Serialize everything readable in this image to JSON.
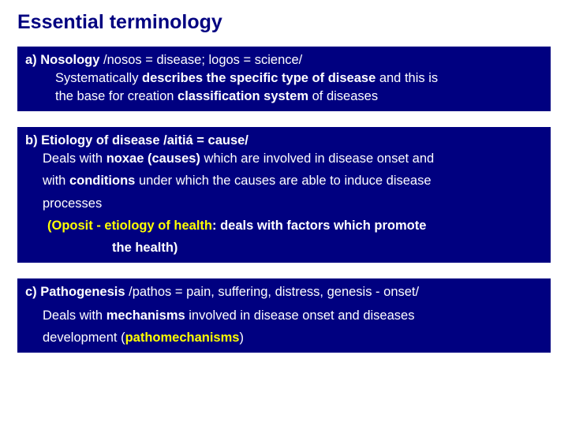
{
  "style": {
    "bg_color": "#ffffff",
    "box_bg": "#000080",
    "box_text": "#ffffff",
    "title_color": "#000080",
    "accent_color": "#ffff00",
    "title_fontsize": 25,
    "body_fontsize": 16.5,
    "font_family": "Verdana, Arial, sans-serif"
  },
  "title": "Essential terminology",
  "boxA": {
    "label": "a) Nosology",
    "ety": "/nosos = disease; logos = science/",
    "t1": "Systematically ",
    "b1": "describes the specific type of disease",
    "t2": " and this is",
    "t3": "the base for creation ",
    "b2": "classification system",
    "t4": " of diseases"
  },
  "boxB": {
    "label": "b) Etiology of disease /aitiá = cause/",
    "t1": "Deals with ",
    "b1": "noxae (causes)",
    "t2": " which are involved in disease onset and",
    "t3": "with ",
    "b2": "conditions",
    "t4": " under which the causes are able to induce disease",
    "t5": "processes",
    "y1": "(Oposit - etiology of health",
    "y2": ": deals with factors which promote",
    "y3": "the health)"
  },
  "boxC": {
    "label": "c) Pathogenesis",
    "ety": "/pathos = pain, suffering, distress, genesis - onset/",
    "t1": "Deals with ",
    "b1": "mechanisms",
    "t2": " involved in disease onset and diseases",
    "t3": "development (",
    "y1": "pathomechanisms",
    "t4": ")"
  }
}
